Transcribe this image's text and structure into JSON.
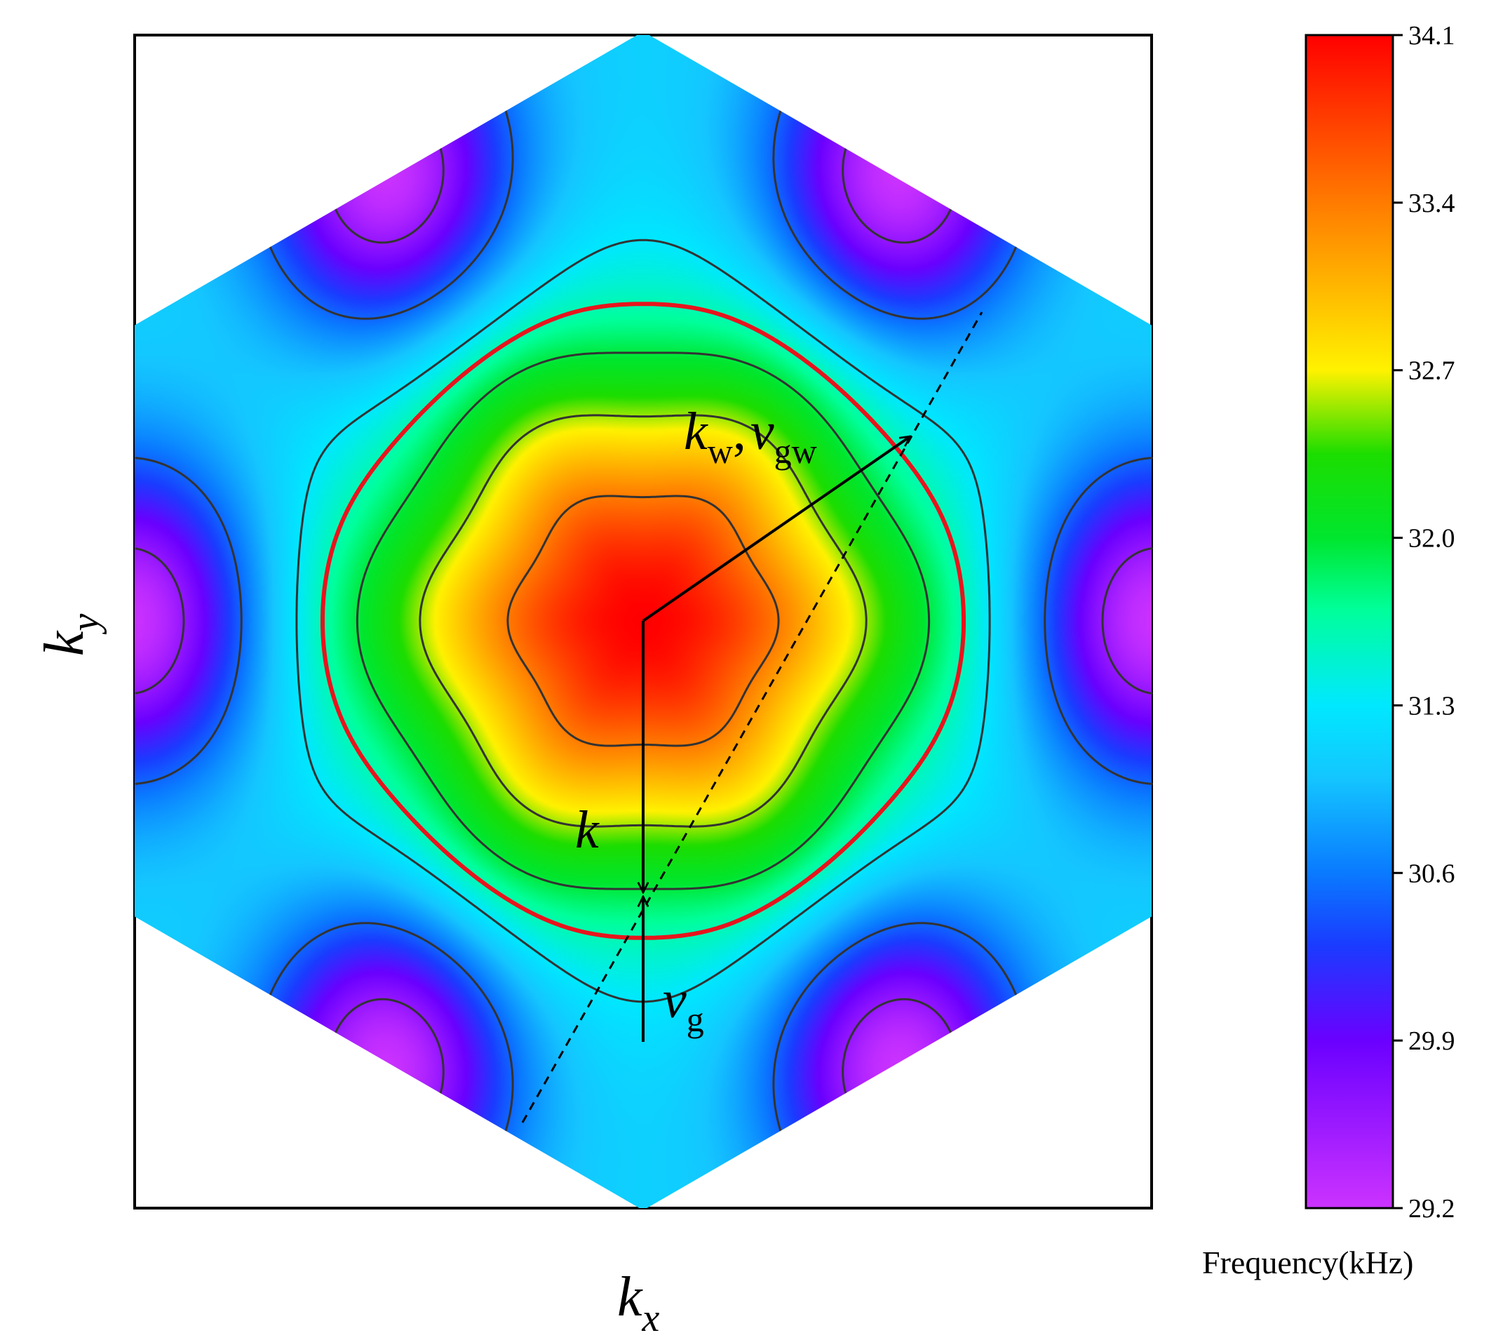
{
  "chart_data": {
    "type": "heatmap",
    "title": "",
    "description_of_domain": "hexagonal Brillouin zone",
    "xlabel": {
      "main": "k",
      "sub": "x"
    },
    "ylabel": {
      "main": "k",
      "sub": "y"
    },
    "colorbar": {
      "title": "Frequency(kHz)",
      "range": [
        29.2,
        34.1
      ],
      "ticks": [
        "34.1",
        "33.4",
        "32.7",
        "32.0",
        "31.3",
        "30.6",
        "29.9",
        "29.2"
      ],
      "tick_values": [
        34.1,
        33.4,
        32.7,
        32.0,
        31.3,
        30.6,
        29.9,
        29.2
      ],
      "colormap": [
        {
          "v": 29.2,
          "color": "#cc33ff"
        },
        {
          "v": 29.9,
          "color": "#6a00ff"
        },
        {
          "v": 30.3,
          "color": "#1a3cff"
        },
        {
          "v": 30.6,
          "color": "#0a7aff"
        },
        {
          "v": 31.0,
          "color": "#14c6ff"
        },
        {
          "v": 31.3,
          "color": "#00e8ff"
        },
        {
          "v": 31.7,
          "color": "#00ff9a"
        },
        {
          "v": 32.0,
          "color": "#00e62e"
        },
        {
          "v": 32.35,
          "color": "#1cdd00"
        },
        {
          "v": 32.7,
          "color": "#fff200"
        },
        {
          "v": 33.4,
          "color": "#ff7b00"
        },
        {
          "v": 34.1,
          "color": "#ff0000"
        }
      ]
    },
    "field": {
      "peak_value": 34.1,
      "edge_minimum_value": 29.2,
      "minima_locations": "six hexagon edge midpoints"
    },
    "contour_levels_black": [
      29.6,
      30.5,
      31.3,
      31.95,
      32.55,
      33.4
    ],
    "highlighted_contour": {
      "level": 31.6,
      "color": "#e8141c"
    },
    "annotations": [
      {
        "id": "k-vector",
        "main": "k",
        "sub": "",
        "type": "arrow"
      },
      {
        "id": "vg-vector",
        "main": "v",
        "sub": "g",
        "type": "arrow"
      },
      {
        "id": "kw-vector",
        "main": "k",
        "sub": "w",
        "sep": ",",
        "main2": "v",
        "sub2": "gw",
        "type": "arrow"
      },
      {
        "id": "tangent-line",
        "type": "dashed-line"
      }
    ]
  }
}
